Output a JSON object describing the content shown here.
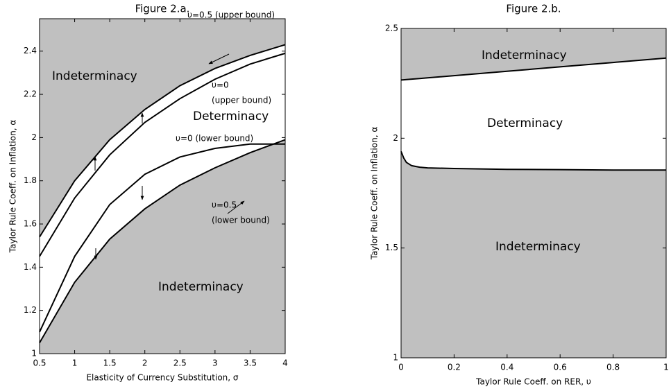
{
  "chart_data": [
    {
      "type": "line",
      "title": "Figure 2.a.",
      "xlabel": "Elasticity of Currency Substitution, σ",
      "ylabel": "Taylor Rule Coeff. on Inflation, α",
      "x": [
        0.5,
        1,
        1.5,
        2,
        2.5,
        3,
        3.5,
        4
      ],
      "series": [
        {
          "name": "υ=0.5 (upper bound)",
          "color": "#000000",
          "values": [
            1.54,
            1.8,
            1.99,
            2.13,
            2.24,
            2.32,
            2.38,
            2.43
          ]
        },
        {
          "name": "υ=0 (upper bound)",
          "color": "#000000",
          "values": [
            1.45,
            1.72,
            1.92,
            2.07,
            2.18,
            2.27,
            2.34,
            2.39
          ]
        },
        {
          "name": "υ=0 (lower bound)",
          "color": "#000000",
          "values": [
            1.1,
            1.45,
            1.69,
            1.83,
            1.91,
            1.95,
            1.97,
            1.97
          ]
        },
        {
          "name": "υ=0.5 (lower bound)",
          "color": "#000000",
          "values": [
            1.05,
            1.33,
            1.53,
            1.67,
            1.78,
            1.86,
            1.93,
            1.99
          ]
        }
      ],
      "annotations": [
        "Indeterminacy",
        "Determinacy",
        "Indeterminacy",
        "υ=0.5 (upper bound)",
        "υ=0",
        "(upper bound)",
        "υ=0 (lower bound)",
        "υ=0.5",
        "(lower bound)"
      ],
      "region_color": "#c0c0c0",
      "xlim": [
        0.5,
        4
      ],
      "xticks": [
        0.5,
        1,
        1.5,
        2,
        2.5,
        3,
        3.5,
        4
      ],
      "ylim": [
        1,
        2.55
      ],
      "yticks": [
        1,
        1.2,
        1.4,
        1.6,
        1.8,
        2,
        2.2,
        2.4
      ]
    },
    {
      "type": "line",
      "title": "Figure 2.b.",
      "xlabel": "Taylor Rule Coeff. on RER, υ",
      "ylabel": "Taylor Rule Coeff. on Inflation, α",
      "x": [
        0,
        0.01,
        0.02,
        0.04,
        0.07,
        0.1,
        0.2,
        0.4,
        0.6,
        0.8,
        1
      ],
      "series": [
        {
          "name": "upper bound",
          "color": "#000000",
          "values": [
            2.265,
            2.266,
            2.267,
            2.269,
            2.272,
            2.275,
            2.285,
            2.305,
            2.325,
            2.345,
            2.365
          ]
        },
        {
          "name": "lower bound",
          "color": "#000000",
          "values": [
            1.94,
            1.91,
            1.89,
            1.875,
            1.868,
            1.865,
            1.862,
            1.858,
            1.857,
            1.855,
            1.855
          ]
        }
      ],
      "annotations": [
        "Indeterminacy",
        "Determinacy",
        "Indeterminacy"
      ],
      "region_color": "#c0c0c0",
      "xlim": [
        0,
        1
      ],
      "xticks": [
        0,
        0.2,
        0.4,
        0.6,
        0.8,
        1
      ],
      "ylim": [
        1,
        2.5
      ],
      "yticks": [
        1,
        1.5,
        2,
        2.5
      ]
    }
  ]
}
